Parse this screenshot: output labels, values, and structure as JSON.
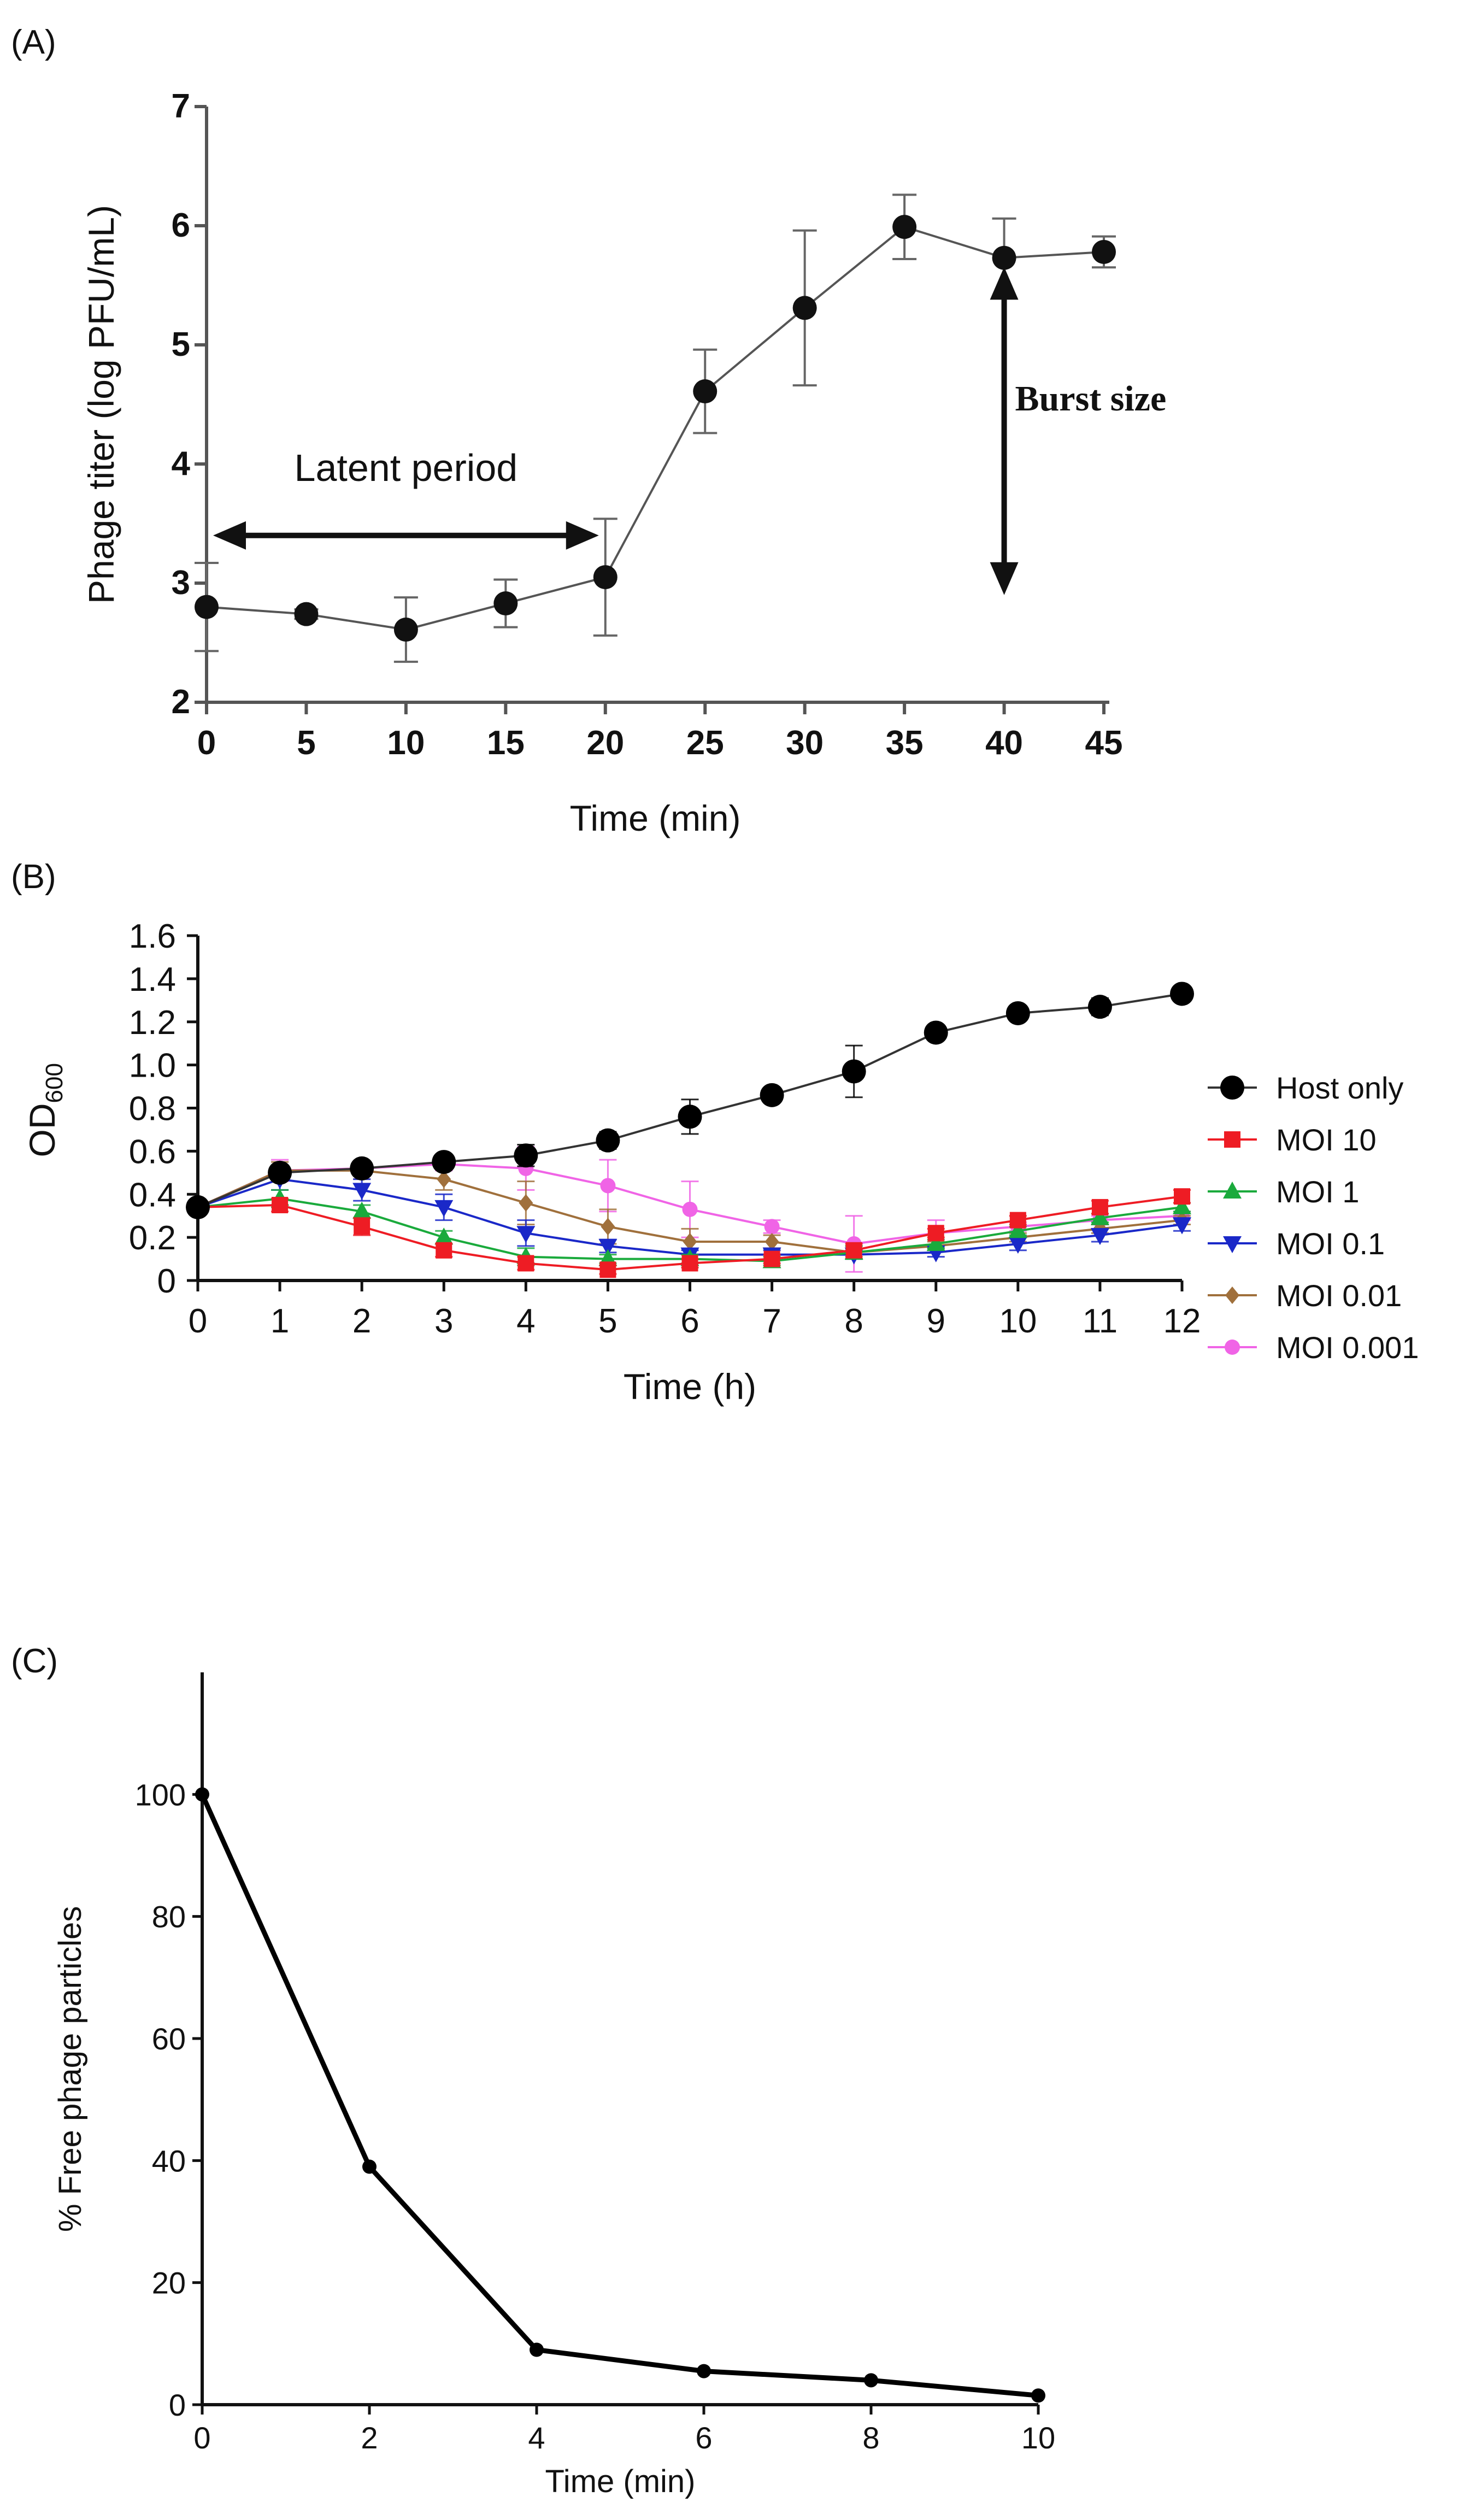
{
  "chart_data": [
    {
      "panel": "(A)",
      "type": "line",
      "xlabel": "Time (min)",
      "ylabel": "Phage titer (log PFU/mL)",
      "xlim": [
        0,
        45
      ],
      "ylim": [
        2,
        7
      ],
      "xticks": [
        "0",
        "5",
        "10",
        "15",
        "20",
        "25",
        "30",
        "35",
        "40",
        "45"
      ],
      "yticks": [
        "2",
        "3",
        "4",
        "5",
        "6",
        "7"
      ],
      "x": [
        0,
        5,
        10,
        15,
        20,
        25,
        30,
        35,
        40,
        45
      ],
      "series": [
        {
          "name": "Phage titer",
          "values": [
            2.8,
            2.74,
            2.61,
            2.83,
            3.05,
            4.61,
            5.31,
            5.99,
            5.73,
            5.78
          ],
          "errors": [
            0.37,
            0.04,
            0.27,
            0.2,
            0.49,
            0.35,
            0.65,
            0.27,
            0.33,
            0.13
          ]
        }
      ],
      "annotations": {
        "latent_label": "Latent period",
        "latent_start": 0,
        "latent_end": 20,
        "latent_y": 3.4,
        "burst_label": "Burst size",
        "burst_x": 40,
        "burst_top": 5.7,
        "burst_bottom": 2.9
      }
    },
    {
      "panel": "(B)",
      "type": "line",
      "xlabel": "Time (h)",
      "ylabel": "OD",
      "ylabel_sub": "600",
      "xlim": [
        0,
        12
      ],
      "ylim": [
        0,
        1.6
      ],
      "xticks": [
        "0",
        "1",
        "2",
        "3",
        "4",
        "5",
        "6",
        "7",
        "8",
        "9",
        "10",
        "11",
        "12"
      ],
      "yticks": [
        "0",
        "0.2",
        "0.4",
        "0.6",
        "0.8",
        "1.0",
        "1.2",
        "1.4",
        "1.6"
      ],
      "x": [
        0,
        1,
        2,
        3,
        4,
        5,
        6,
        7,
        8,
        9,
        10,
        11,
        12
      ],
      "series": [
        {
          "name": "Host only",
          "color": "#000000",
          "marker": "circle",
          "values": [
            0.34,
            0.5,
            0.52,
            0.55,
            0.58,
            0.65,
            0.76,
            0.86,
            0.97,
            1.15,
            1.24,
            1.27,
            1.33
          ],
          "errors": [
            0.03,
            0.03,
            0.02,
            0.02,
            0.05,
            0.04,
            0.08,
            0.02,
            0.12,
            0.03,
            0.03,
            0.04,
            0.01
          ]
        },
        {
          "name": "MOI 10",
          "color": "#ee1c24",
          "marker": "square",
          "values": [
            0.34,
            0.35,
            0.25,
            0.14,
            0.08,
            0.05,
            0.08,
            0.1,
            0.14,
            0.22,
            0.28,
            0.34,
            0.39
          ],
          "errors": [
            0.03,
            0.03,
            0.04,
            0.03,
            0.03,
            0.02,
            0.02,
            0.02,
            0.03,
            0.02,
            0.02,
            0.03,
            0.03
          ]
        },
        {
          "name": "MOI 1",
          "color": "#1aaa3c",
          "marker": "triangle-up",
          "values": [
            0.34,
            0.38,
            0.32,
            0.2,
            0.11,
            0.1,
            0.1,
            0.09,
            0.13,
            0.17,
            0.23,
            0.29,
            0.34
          ],
          "errors": [
            0.03,
            0.04,
            0.03,
            0.03,
            0.04,
            0.02,
            0.02,
            0.02,
            0.03,
            0.02,
            0.02,
            0.02,
            0.02
          ]
        },
        {
          "name": "MOI 0.1",
          "color": "#1a28c8",
          "marker": "triangle-down",
          "values": [
            0.34,
            0.47,
            0.42,
            0.34,
            0.22,
            0.16,
            0.12,
            0.12,
            0.12,
            0.13,
            0.17,
            0.21,
            0.26
          ],
          "errors": [
            0.03,
            0.05,
            0.05,
            0.06,
            0.06,
            0.03,
            0.02,
            0.02,
            0.02,
            0.02,
            0.03,
            0.03,
            0.03
          ]
        },
        {
          "name": "MOI 0.01",
          "color": "#a0703c",
          "marker": "diamond",
          "values": [
            0.34,
            0.51,
            0.51,
            0.47,
            0.36,
            0.25,
            0.18,
            0.18,
            0.13,
            0.16,
            0.2,
            0.24,
            0.28
          ],
          "errors": [
            0.03,
            0.04,
            0.04,
            0.05,
            0.1,
            0.08,
            0.06,
            0.03,
            0.03,
            0.02,
            0.02,
            0.02,
            0.02
          ]
        },
        {
          "name": "MOI 0.001",
          "color": "#f064e6",
          "marker": "circle-small",
          "values": [
            0.34,
            0.51,
            0.52,
            0.54,
            0.52,
            0.44,
            0.33,
            0.25,
            0.17,
            0.22,
            0.25,
            0.28,
            0.3
          ],
          "errors": [
            0.03,
            0.05,
            0.03,
            0.03,
            0.1,
            0.12,
            0.13,
            0.03,
            0.13,
            0.06,
            0.02,
            0.02,
            0.02
          ]
        }
      ],
      "legend_position": "right"
    },
    {
      "panel": "(C)",
      "type": "line",
      "xlabel": "Time (min)",
      "ylabel": "% Free phage particles",
      "xlim": [
        0,
        10
      ],
      "ylim": [
        0,
        120
      ],
      "xticks": [
        "0",
        "2",
        "4",
        "6",
        "8",
        "10"
      ],
      "yticks": [
        "0",
        "20",
        "40",
        "60",
        "80",
        "100"
      ],
      "x": [
        0,
        2,
        4,
        6,
        8,
        10
      ],
      "series": [
        {
          "name": "Free phage",
          "color": "#000000",
          "values": [
            100,
            39,
            9,
            5.5,
            4,
            1.5
          ]
        }
      ]
    }
  ]
}
